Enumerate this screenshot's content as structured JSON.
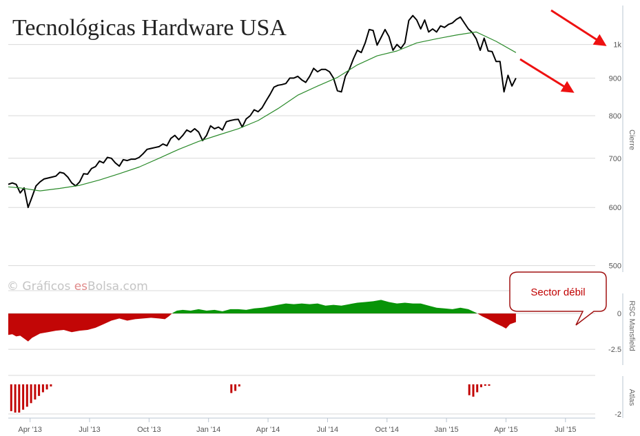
{
  "chart_data": [
    {
      "type": "line",
      "title": "Tecnológicas Hardware USA",
      "ylabel": "Cierre",
      "yscale": "log",
      "ylim": [
        490,
        1130
      ],
      "y_ticks": [
        {
          "v": 500,
          "label": "500"
        },
        {
          "v": 600,
          "label": "600"
        },
        {
          "v": 700,
          "label": "700"
        },
        {
          "v": 800,
          "label": "800"
        },
        {
          "v": 900,
          "label": "900"
        },
        {
          "v": 1000,
          "label": "1k"
        }
      ],
      "x_ticks": [
        "Apr '13",
        "Jul '13",
        "Oct '13",
        "Jan '14",
        "Apr '14",
        "Jul '14",
        "Oct '14",
        "Jan '15",
        "Apr '15",
        "Jul '15"
      ],
      "x_unit": "month",
      "xlim": [
        -0.6,
        29.0
      ],
      "grid": true,
      "series": [
        {
          "role": "close",
          "color": "#000000",
          "points": [
            [
              -0.6,
              645
            ],
            [
              -0.4,
              648
            ],
            [
              -0.2,
              645
            ],
            [
              0.0,
              628
            ],
            [
              0.2,
              638
            ],
            [
              0.4,
              600
            ],
            [
              0.6,
              620
            ],
            [
              0.8,
              642
            ],
            [
              1.0,
              650
            ],
            [
              1.2,
              656
            ],
            [
              1.4,
              658
            ],
            [
              1.6,
              660
            ],
            [
              1.8,
              662
            ],
            [
              2.0,
              670
            ],
            [
              2.2,
              668
            ],
            [
              2.4,
              660
            ],
            [
              2.6,
              648
            ],
            [
              2.8,
              642
            ],
            [
              3.0,
              650
            ],
            [
              3.2,
              667
            ],
            [
              3.4,
              666
            ],
            [
              3.6,
              678
            ],
            [
              3.8,
              682
            ],
            [
              4.0,
              694
            ],
            [
              4.2,
              690
            ],
            [
              4.4,
              702
            ],
            [
              4.6,
              700
            ],
            [
              4.8,
              690
            ],
            [
              5.0,
              683
            ],
            [
              5.2,
              697
            ],
            [
              5.4,
              695
            ],
            [
              5.6,
              698
            ],
            [
              5.8,
              698
            ],
            [
              6.0,
              702
            ],
            [
              6.2,
              710
            ],
            [
              6.4,
              720
            ],
            [
              6.6,
              722
            ],
            [
              6.8,
              724
            ],
            [
              7.0,
              726
            ],
            [
              7.2,
              732
            ],
            [
              7.4,
              728
            ],
            [
              7.6,
              745
            ],
            [
              7.8,
              752
            ],
            [
              8.0,
              742
            ],
            [
              8.2,
              752
            ],
            [
              8.4,
              765
            ],
            [
              8.6,
              760
            ],
            [
              8.8,
              768
            ],
            [
              9.0,
              760
            ],
            [
              9.2,
              740
            ],
            [
              9.4,
              752
            ],
            [
              9.6,
              775
            ],
            [
              9.8,
              768
            ],
            [
              10.0,
              772
            ],
            [
              10.2,
              765
            ],
            [
              10.4,
              785
            ],
            [
              10.6,
              788
            ],
            [
              10.8,
              790
            ],
            [
              11.0,
              791
            ],
            [
              11.2,
              772
            ],
            [
              11.4,
              792
            ],
            [
              11.6,
              800
            ],
            [
              11.8,
              815
            ],
            [
              12.0,
              810
            ],
            [
              12.2,
              820
            ],
            [
              12.4,
              838
            ],
            [
              12.6,
              855
            ],
            [
              12.8,
              875
            ],
            [
              13.0,
              880
            ],
            [
              13.2,
              882
            ],
            [
              13.4,
              885
            ],
            [
              13.6,
              900
            ],
            [
              13.8,
              900
            ],
            [
              14.0,
              905
            ],
            [
              14.2,
              895
            ],
            [
              14.4,
              888
            ],
            [
              14.6,
              905
            ],
            [
              14.8,
              928
            ],
            [
              15.0,
              918
            ],
            [
              15.2,
              925
            ],
            [
              15.4,
              925
            ],
            [
              15.6,
              918
            ],
            [
              15.8,
              900
            ],
            [
              16.0,
              865
            ],
            [
              16.2,
              862
            ],
            [
              16.4,
              905
            ],
            [
              16.6,
              925
            ],
            [
              16.8,
              955
            ],
            [
              17.0,
              982
            ],
            [
              17.2,
              975
            ],
            [
              17.4,
              1005
            ],
            [
              17.6,
              1048
            ],
            [
              17.8,
              1045
            ],
            [
              18.0,
              998
            ],
            [
              18.2,
              1022
            ],
            [
              18.4,
              1048
            ],
            [
              18.6,
              1025
            ],
            [
              18.8,
              982
            ],
            [
              19.0,
              1000
            ],
            [
              19.2,
              988
            ],
            [
              19.4,
              1005
            ],
            [
              19.6,
              1078
            ],
            [
              19.8,
              1095
            ],
            [
              20.0,
              1080
            ],
            [
              20.2,
              1050
            ],
            [
              20.4,
              1080
            ],
            [
              20.6,
              1040
            ],
            [
              20.8,
              1050
            ],
            [
              21.0,
              1040
            ],
            [
              21.2,
              1060
            ],
            [
              21.4,
              1055
            ],
            [
              21.6,
              1065
            ],
            [
              21.8,
              1070
            ],
            [
              22.0,
              1082
            ],
            [
              22.2,
              1090
            ],
            [
              22.4,
              1070
            ],
            [
              22.6,
              1050
            ],
            [
              22.8,
              1038
            ],
            [
              23.0,
              1018
            ],
            [
              23.2,
              982
            ],
            [
              23.4,
              1020
            ],
            [
              23.6,
              980
            ],
            [
              23.8,
              978
            ],
            [
              24.0,
              948
            ],
            [
              24.2,
              948
            ],
            [
              24.4,
              862
            ],
            [
              24.6,
              908
            ],
            [
              24.8,
              878
            ],
            [
              25.0,
              900
            ]
          ]
        },
        {
          "role": "moving-average",
          "color": "#2a8a2a",
          "points": [
            [
              -0.6,
              640
            ],
            [
              0.0,
              638
            ],
            [
              1.0,
              632
            ],
            [
              2.0,
              637
            ],
            [
              3.0,
              643
            ],
            [
              4.0,
              654
            ],
            [
              5.0,
              667
            ],
            [
              6.0,
              681
            ],
            [
              7.0,
              700
            ],
            [
              8.0,
              720
            ],
            [
              9.0,
              738
            ],
            [
              10.0,
              753
            ],
            [
              11.0,
              768
            ],
            [
              12.0,
              788
            ],
            [
              13.0,
              818
            ],
            [
              14.0,
              853
            ],
            [
              15.0,
              878
            ],
            [
              16.0,
              902
            ],
            [
              17.0,
              938
            ],
            [
              18.0,
              965
            ],
            [
              19.0,
              980
            ],
            [
              20.0,
              1005
            ],
            [
              21.0,
              1018
            ],
            [
              22.0,
              1030
            ],
            [
              23.0,
              1040
            ],
            [
              24.0,
              1010
            ],
            [
              25.0,
              975
            ]
          ]
        }
      ]
    },
    {
      "type": "area",
      "ylabel": "RSC Mansfield",
      "ylim": [
        -3.6,
        1.4
      ],
      "y_ticks": [
        {
          "v": 0,
          "label": "0"
        },
        {
          "v": -2.5,
          "label": "-2.5"
        }
      ],
      "colors": {
        "positive": "#089408",
        "negative": "#c20606"
      },
      "points": [
        [
          -0.6,
          -1.5
        ],
        [
          -0.4,
          -1.45
        ],
        [
          -0.2,
          -1.6
        ],
        [
          0.0,
          -1.55
        ],
        [
          0.2,
          -1.75
        ],
        [
          0.4,
          -1.95
        ],
        [
          0.6,
          -1.7
        ],
        [
          0.8,
          -1.55
        ],
        [
          1.0,
          -1.4
        ],
        [
          1.4,
          -1.3
        ],
        [
          1.8,
          -1.2
        ],
        [
          2.2,
          -1.15
        ],
        [
          2.6,
          -1.3
        ],
        [
          3.0,
          -1.2
        ],
        [
          3.4,
          -1.15
        ],
        [
          3.8,
          -1.0
        ],
        [
          4.2,
          -0.75
        ],
        [
          4.6,
          -0.5
        ],
        [
          5.0,
          -0.35
        ],
        [
          5.4,
          -0.5
        ],
        [
          5.8,
          -0.4
        ],
        [
          6.2,
          -0.35
        ],
        [
          6.6,
          -0.3
        ],
        [
          7.0,
          -0.35
        ],
        [
          7.3,
          -0.4
        ],
        [
          7.5,
          -0.2
        ],
        [
          7.7,
          0.05
        ],
        [
          7.9,
          0.2
        ],
        [
          8.2,
          0.25
        ],
        [
          8.6,
          0.2
        ],
        [
          9.0,
          0.3
        ],
        [
          9.4,
          0.2
        ],
        [
          9.8,
          0.25
        ],
        [
          10.2,
          0.15
        ],
        [
          10.6,
          0.3
        ],
        [
          11.0,
          0.3
        ],
        [
          11.4,
          0.25
        ],
        [
          11.8,
          0.35
        ],
        [
          12.2,
          0.4
        ],
        [
          12.6,
          0.5
        ],
        [
          13.0,
          0.6
        ],
        [
          13.4,
          0.7
        ],
        [
          13.8,
          0.65
        ],
        [
          14.2,
          0.7
        ],
        [
          14.6,
          0.65
        ],
        [
          15.0,
          0.7
        ],
        [
          15.4,
          0.55
        ],
        [
          15.8,
          0.6
        ],
        [
          16.2,
          0.55
        ],
        [
          16.6,
          0.65
        ],
        [
          17.0,
          0.75
        ],
        [
          17.4,
          0.8
        ],
        [
          17.8,
          0.85
        ],
        [
          18.2,
          0.95
        ],
        [
          18.6,
          0.8
        ],
        [
          19.0,
          0.7
        ],
        [
          19.4,
          0.75
        ],
        [
          19.8,
          0.7
        ],
        [
          20.2,
          0.7
        ],
        [
          20.6,
          0.55
        ],
        [
          21.0,
          0.4
        ],
        [
          21.4,
          0.35
        ],
        [
          21.8,
          0.3
        ],
        [
          22.2,
          0.4
        ],
        [
          22.6,
          0.3
        ],
        [
          23.0,
          0.05
        ],
        [
          23.3,
          -0.2
        ],
        [
          23.6,
          -0.4
        ],
        [
          24.0,
          -0.7
        ],
        [
          24.3,
          -0.9
        ],
        [
          24.5,
          -1.05
        ],
        [
          24.7,
          -0.75
        ],
        [
          25.0,
          -0.6
        ]
      ]
    },
    {
      "type": "bar",
      "ylabel": "Atlas",
      "y_ticks": [
        {
          "v": -2,
          "label": "-2"
        }
      ],
      "bar_color": "#c20606",
      "bars": [
        [
          -0.45,
          -1.85
        ],
        [
          -0.25,
          -1.95
        ],
        [
          -0.05,
          -1.95
        ],
        [
          0.15,
          -1.75
        ],
        [
          0.35,
          -1.55
        ],
        [
          0.55,
          -1.3
        ],
        [
          0.75,
          -1.05
        ],
        [
          0.95,
          -0.8
        ],
        [
          1.15,
          -0.55
        ],
        [
          1.35,
          -0.35
        ],
        [
          1.55,
          -0.15
        ],
        [
          10.65,
          -0.6
        ],
        [
          10.85,
          -0.45
        ],
        [
          11.05,
          -0.15
        ],
        [
          22.65,
          -0.75
        ],
        [
          22.85,
          -0.85
        ],
        [
          23.05,
          -0.55
        ],
        [
          23.25,
          -0.2
        ],
        [
          23.45,
          -0.1
        ],
        [
          23.65,
          -0.1
        ]
      ]
    }
  ],
  "watermark": {
    "prefix": "© Gráficos ",
    "accent": "es",
    "suffix": "Bolsa.com"
  },
  "callout": {
    "text": "Sector débil",
    "fill": "#ffffff",
    "stroke": "#a01010"
  },
  "arrows_color": "#ee1111"
}
